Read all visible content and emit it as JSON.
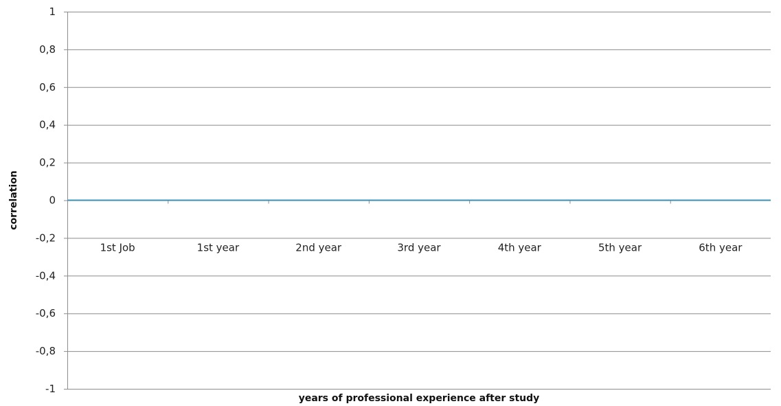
{
  "chart_data": {
    "type": "line",
    "title": "",
    "xlabel": "years of professional experience after study",
    "ylabel": "correlation",
    "categories": [
      "1st Job",
      "1st year",
      "2nd year",
      "3rd year",
      "4th year",
      "5th year",
      "6th year"
    ],
    "series": [
      {
        "values": [
          0,
          0,
          0,
          0,
          0,
          0,
          0
        ],
        "color": "#3a8fb7"
      }
    ],
    "ylim": [
      -1,
      1
    ],
    "yticks": [
      1,
      0.8,
      0.6,
      0.4,
      0.2,
      0,
      -0.2,
      -0.4,
      -0.6,
      -0.8,
      -1
    ],
    "ytick_labels": [
      "1",
      "0,8",
      "0,6",
      "0,4",
      "0,2",
      "0",
      "-0,2",
      "-0,4",
      "-0,6",
      "-0,8",
      "-1"
    ],
    "grid": true,
    "legend": "none",
    "colors": {
      "grid": "#8c8c8c",
      "axis": "#8c8c8c",
      "text": "#222222"
    }
  }
}
